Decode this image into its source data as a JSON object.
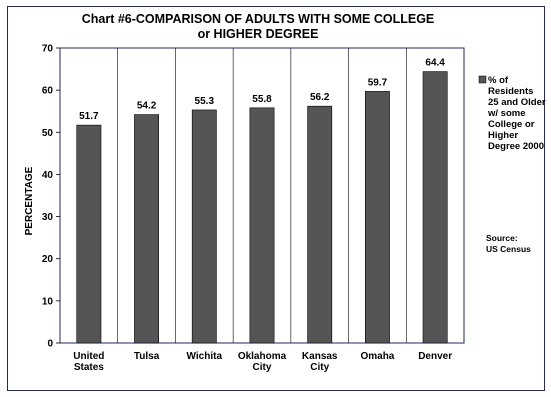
{
  "chart_data": {
    "type": "bar",
    "title_lines": [
      "Chart #6-COMPARISON OF ADULTS WITH SOME COLLEGE",
      "or HIGHER DEGREE"
    ],
    "ylabel": "PERCENTAGE",
    "xlabel": "",
    "ylim": [
      0,
      70
    ],
    "yticks": [
      "0",
      "10",
      "20",
      "30",
      "40",
      "50",
      "60",
      "70"
    ],
    "grid": "vertical separators only",
    "categories": [
      [
        "United",
        "States"
      ],
      [
        "Tulsa"
      ],
      [
        "Wichita"
      ],
      [
        "Oklahoma",
        "City"
      ],
      [
        "Kansas",
        "City"
      ],
      [
        "Omaha"
      ],
      [
        "Denver"
      ]
    ],
    "values": [
      51.7,
      54.2,
      55.3,
      55.8,
      56.2,
      59.7,
      64.4
    ],
    "data_labels": [
      "51.7",
      "54.2",
      "55.3",
      "55.8",
      "56.2",
      "59.7",
      "64.4"
    ],
    "bar_color": "#555555",
    "legend": {
      "placement": "right",
      "lines": [
        "% of",
        "Residents",
        "25 and Older",
        "w/ some",
        "College or",
        "Higher",
        "Degree 2000"
      ]
    },
    "source": [
      "Source:",
      "US Census"
    ]
  }
}
